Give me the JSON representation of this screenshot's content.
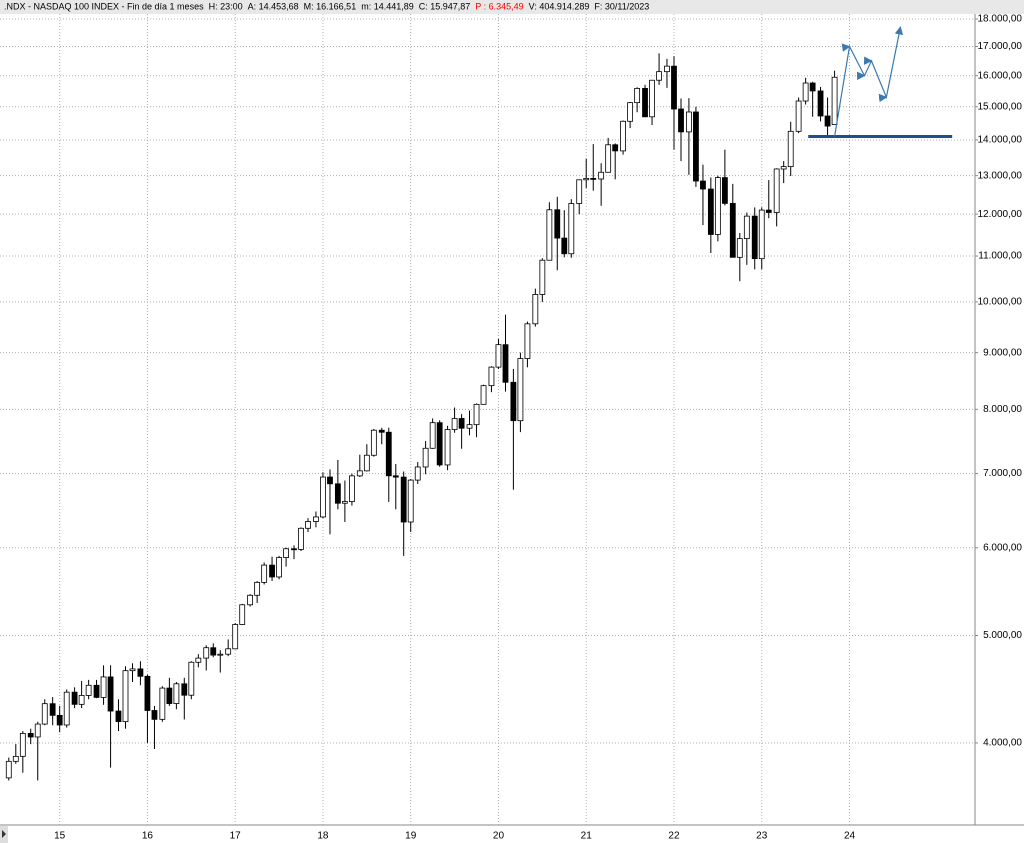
{
  "chart_data": {
    "type": "candlestick",
    "log_scale": true,
    "grid": true,
    "header": [
      ".NDX - NASDAQ 100 INDEX - Fin de día 1 meses",
      "H: 23:00",
      "A: 14.453,68",
      "M: 16.166,51",
      "m: 14.441,89",
      "C: 15.947,87",
      "P : 6.345,49",
      "V: 404.914.289",
      "F: 30/11/2023"
    ],
    "header_colors": [
      "#000000",
      "#000000",
      "#000000",
      "#000000",
      "#000000",
      "#000000",
      "#ff0000",
      "#000000",
      "#000000"
    ],
    "up_color": "#ffffff",
    "down_color": "#000000",
    "xlim": [
      2014.32,
      2025.43
    ],
    "xticks": [
      {
        "value": 2015,
        "label": "15"
      },
      {
        "value": 2016,
        "label": "16"
      },
      {
        "value": 2017,
        "label": "17"
      },
      {
        "value": 2018,
        "label": "18"
      },
      {
        "value": 2019,
        "label": "19"
      },
      {
        "value": 2020,
        "label": "20"
      },
      {
        "value": 2021,
        "label": "21"
      },
      {
        "value": 2022,
        "label": "22"
      },
      {
        "value": 2023,
        "label": "23"
      },
      {
        "value": 2024,
        "label": "24"
      }
    ],
    "ylim": [
      3373,
      18340
    ],
    "yticks": [
      {
        "value": 4000,
        "label": "4.000,00"
      },
      {
        "value": 5000,
        "label": "5.000,00"
      },
      {
        "value": 6000,
        "label": "6.000,00"
      },
      {
        "value": 7000,
        "label": "7.000,00"
      },
      {
        "value": 8000,
        "label": "8.000,00"
      },
      {
        "value": 9000,
        "label": "9.000,00"
      },
      {
        "value": 10000,
        "label": "10.000,00"
      },
      {
        "value": 11000,
        "label": "11.000,00"
      },
      {
        "value": 12000,
        "label": "12.000,00"
      },
      {
        "value": 13000,
        "label": "13.000,00"
      },
      {
        "value": 14000,
        "label": "14.000,00"
      },
      {
        "value": 15000,
        "label": "15.000,00"
      },
      {
        "value": 16000,
        "label": "16.000,00"
      },
      {
        "value": 17000,
        "label": "17.000,00"
      },
      {
        "value": 18000,
        "label": "18.000,00"
      }
    ],
    "candles": {
      "x": [
        2014.42,
        2014.5,
        2014.58,
        2014.67,
        2014.75,
        2014.83,
        2014.92,
        2015,
        2015.08,
        2015.17,
        2015.25,
        2015.33,
        2015.42,
        2015.5,
        2015.58,
        2015.67,
        2015.75,
        2015.83,
        2015.92,
        2016,
        2016.08,
        2016.17,
        2016.25,
        2016.33,
        2016.42,
        2016.5,
        2016.58,
        2016.67,
        2016.75,
        2016.83,
        2016.92,
        2017,
        2017.08,
        2017.17,
        2017.25,
        2017.33,
        2017.42,
        2017.5,
        2017.58,
        2017.67,
        2017.75,
        2017.83,
        2017.92,
        2018,
        2018.08,
        2018.17,
        2018.25,
        2018.33,
        2018.42,
        2018.5,
        2018.58,
        2018.67,
        2018.75,
        2018.83,
        2018.92,
        2019,
        2019.08,
        2019.17,
        2019.25,
        2019.33,
        2019.42,
        2019.5,
        2019.58,
        2019.67,
        2019.75,
        2019.83,
        2019.92,
        2020,
        2020.08,
        2020.17,
        2020.25,
        2020.33,
        2020.42,
        2020.5,
        2020.58,
        2020.67,
        2020.75,
        2020.83,
        2020.92,
        2021,
        2021.08,
        2021.17,
        2021.25,
        2021.33,
        2021.42,
        2021.5,
        2021.58,
        2021.67,
        2021.75,
        2021.83,
        2021.92,
        2022,
        2022.08,
        2022.17,
        2022.25,
        2022.33,
        2022.42,
        2022.5,
        2022.58,
        2022.67,
        2022.75,
        2022.83,
        2022.92,
        2023,
        2023.08,
        2023.17,
        2023.25,
        2023.33,
        2023.42,
        2023.5,
        2023.58,
        2023.67,
        2023.75,
        2023.83
      ],
      "open": [
        3720,
        3850,
        3890,
        4080,
        4050,
        4160,
        4340,
        4236,
        4152,
        4445,
        4334,
        4415,
        4509,
        4397,
        4588,
        4274,
        4181,
        4648,
        4665,
        4594,
        4279,
        4201,
        4483,
        4341,
        4523,
        4417,
        4730,
        4771,
        4875,
        4801,
        4810,
        4864,
        5116,
        5330,
        5436,
        5584,
        5788,
        5647,
        5880,
        5988,
        5980,
        6248,
        6337,
        6397,
        6950,
        6853,
        6582,
        6605,
        6967,
        7040,
        7272,
        7660,
        7628,
        6968,
        6949,
        6330,
        6906,
        7097,
        7378,
        7781,
        7127,
        7671,
        7849,
        7692,
        7749,
        8083,
        8403,
        8733,
        9150,
        8462,
        7813,
        8890,
        9555,
        10157,
        10905,
        12110,
        11418,
        11052,
        12268,
        12888,
        12925,
        12909,
        13091,
        13861,
        13686,
        14554,
        15129,
        15583,
        14690,
        15850,
        16135,
        16320,
        14930,
        14237,
        14838,
        12855,
        12643,
        11504,
        12947,
        12272,
        10971,
        11405,
        11951,
        10940,
        12102,
        12042,
        13181,
        13246,
        14254,
        15180,
        15758,
        15501,
        14715,
        14453.68
      ],
      "high": [
        3880,
        3990,
        4100,
        4120,
        4180,
        4380,
        4400,
        4320,
        4470,
        4490,
        4550,
        4560,
        4560,
        4700,
        4700,
        4380,
        4690,
        4720,
        4740,
        4610,
        4320,
        4500,
        4580,
        4540,
        4580,
        4740,
        4810,
        4900,
        4920,
        4850,
        4960,
        5130,
        5340,
        5450,
        5600,
        5820,
        5890,
        5900,
        6000,
        6030,
        6260,
        6380,
        6470,
        7020,
        7060,
        7200,
        6900,
        7000,
        7280,
        7440,
        7680,
        7700,
        7700,
        7140,
        7030,
        6920,
        7170,
        7490,
        7850,
        7820,
        7730,
        8030,
        7920,
        7980,
        8100,
        8420,
        8750,
        9260,
        9740,
        8700,
        9000,
        9600,
        10280,
        10950,
        12300,
        12440,
        12100,
        12380,
        12890,
        13460,
        13880,
        13340,
        14060,
        13900,
        14580,
        15150,
        15620,
        15700,
        15850,
        16760,
        16570,
        16660,
        15260,
        15270,
        15000,
        13300,
        12950,
        13000,
        13720,
        12780,
        11540,
        12040,
        12170,
        12170,
        12880,
        13200,
        13400,
        14540,
        15290,
        15930,
        15800,
        15630,
        15290,
        16166.51
      ],
      "low": [
        3700,
        3830,
        3760,
        3990,
        3700,
        4150,
        4150,
        4090,
        4130,
        4300,
        4300,
        4380,
        4390,
        4330,
        3800,
        4100,
        4120,
        4540,
        4510,
        4000,
        3950,
        4180,
        4320,
        4290,
        4200,
        4380,
        4680,
        4650,
        4780,
        4630,
        4790,
        4860,
        5110,
        5310,
        5350,
        5560,
        5600,
        5620,
        5770,
        5860,
        5960,
        6200,
        6260,
        6380,
        6170,
        6500,
        6330,
        6550,
        6950,
        7030,
        7250,
        7440,
        6600,
        6500,
        5900,
        6200,
        6850,
        6990,
        7370,
        7100,
        7050,
        7620,
        7370,
        7580,
        7550,
        8080,
        8290,
        8700,
        8300,
        6770,
        7630,
        8730,
        9500,
        10000,
        10900,
        10680,
        10970,
        10960,
        12000,
        12670,
        12600,
        12210,
        13090,
        12900,
        13580,
        14350,
        14830,
        14680,
        14440,
        15700,
        15600,
        13720,
        13400,
        13020,
        12700,
        11730,
        11070,
        11340,
        12220,
        10970,
        10440,
        10800,
        10700,
        10700,
        11900,
        11700,
        12800,
        12990,
        14200,
        15070,
        14690,
        14550,
        14060,
        14441.89
      ],
      "close": [
        3850,
        3890,
        4080,
        4050,
        4160,
        4340,
        4236,
        4152,
        4445,
        4334,
        4415,
        4509,
        4397,
        4588,
        4274,
        4181,
        4648,
        4665,
        4594,
        4279,
        4201,
        4483,
        4341,
        4523,
        4417,
        4730,
        4771,
        4875,
        4801,
        4810,
        4864,
        5116,
        5330,
        5436,
        5584,
        5788,
        5647,
        5880,
        5988,
        5980,
        6248,
        6337,
        6397,
        6950,
        6853,
        6582,
        6605,
        6967,
        7040,
        7272,
        7660,
        7628,
        6968,
        6949,
        6330,
        6906,
        7097,
        7378,
        7781,
        7127,
        7671,
        7849,
        7692,
        7749,
        8083,
        8403,
        8733,
        9150,
        8462,
        7813,
        8890,
        9555,
        10157,
        10905,
        12110,
        11418,
        11052,
        12268,
        12888,
        12925,
        12909,
        13091,
        13861,
        13686,
        14554,
        15129,
        15583,
        14690,
        15850,
        16135,
        16320,
        14930,
        14237,
        14838,
        12855,
        12643,
        11504,
        12947,
        12272,
        10971,
        11405,
        11951,
        10940,
        12102,
        12042,
        13181,
        13246,
        14254,
        15180,
        15758,
        15501,
        14715,
        14410,
        15947.87
      ]
    },
    "support": {
      "value": 14100,
      "x": [
        2023.53,
        2025.17
      ],
      "color": "#1f4e8c"
    },
    "projection": {
      "x": [
        2023.83,
        2024,
        2024.17,
        2024.25,
        2024.42,
        2024.58
      ],
      "values": [
        14100,
        17000,
        16000,
        16500,
        15300,
        17700
      ],
      "color": "#3a78b0"
    }
  }
}
